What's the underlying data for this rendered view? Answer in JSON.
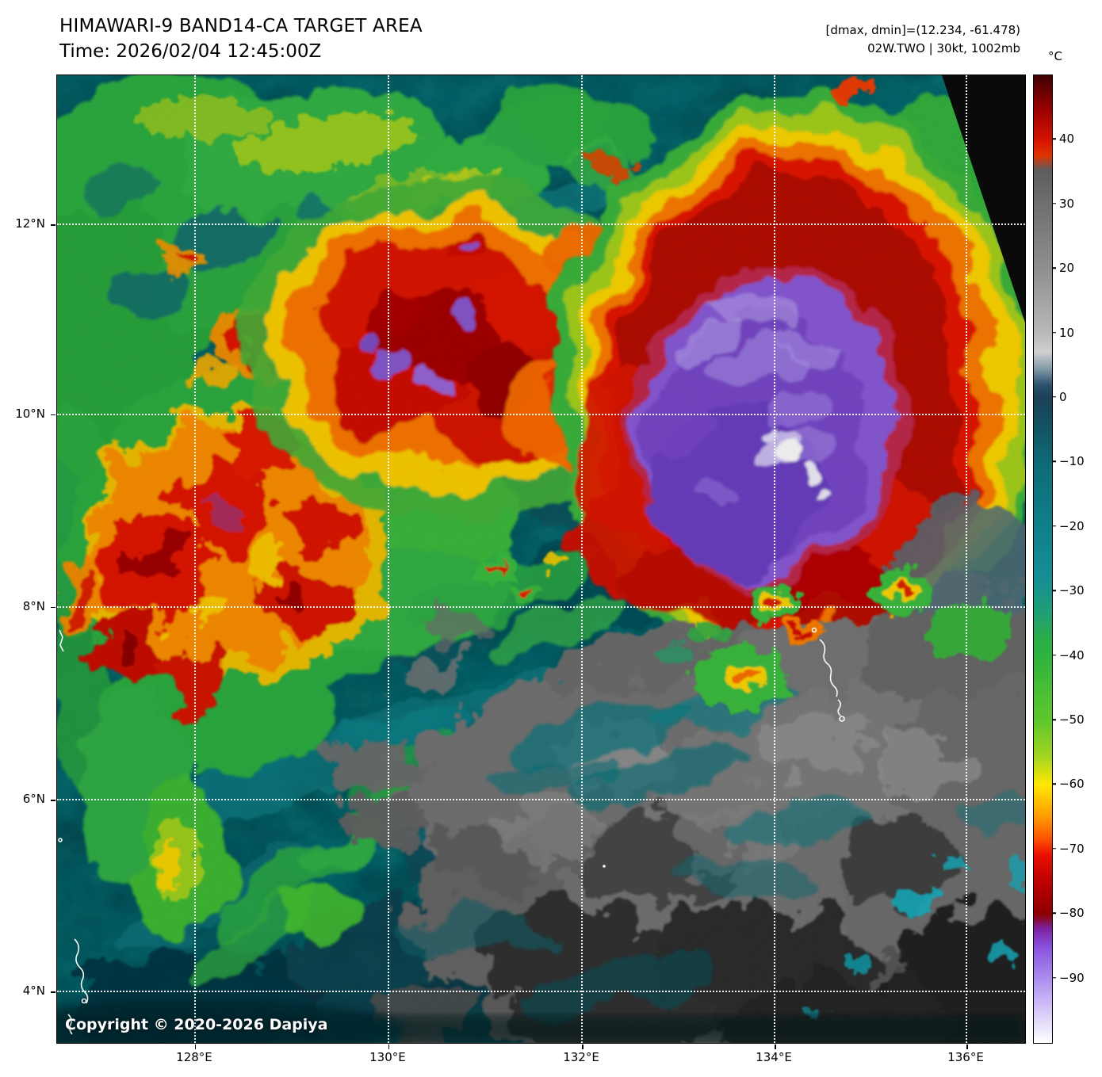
{
  "header": {
    "title": "HIMAWARI-9 BAND14-CA TARGET AREA",
    "time_line": "Time: 2026/02/04 12:45:00Z",
    "range_line": "[dmax, dmin]=(12.234, -61.478)",
    "storm_line": "02W.TWO | 30kt, 1002mb"
  },
  "plot": {
    "copyright": "Copyright © 2020-2026 Dapiya",
    "lat_ticks": [
      {
        "label": "12°N",
        "pct": 15.4
      },
      {
        "label": "10°N",
        "pct": 35.05
      },
      {
        "label": "8°N",
        "pct": 54.95
      },
      {
        "label": "6°N",
        "pct": 74.86
      },
      {
        "label": "4°N",
        "pct": 94.68
      }
    ],
    "lon_ticks": [
      {
        "label": "128°E",
        "pct": 14.25
      },
      {
        "label": "130°E",
        "pct": 34.23
      },
      {
        "label": "132°E",
        "pct": 54.22
      },
      {
        "label": "134°E",
        "pct": 74.12
      },
      {
        "label": "136°E",
        "pct": 93.94
      }
    ]
  },
  "colorbar": {
    "unit": "°C",
    "ticks": [
      {
        "label": "40",
        "pct": 6.67
      },
      {
        "label": "30",
        "pct": 13.33
      },
      {
        "label": "20",
        "pct": 20.0
      },
      {
        "label": "10",
        "pct": 26.67
      },
      {
        "label": "0",
        "pct": 33.33
      },
      {
        "label": "−10",
        "pct": 40.0
      },
      {
        "label": "−20",
        "pct": 46.67
      },
      {
        "label": "−30",
        "pct": 53.33
      },
      {
        "label": "−40",
        "pct": 60.0
      },
      {
        "label": "−50",
        "pct": 66.67
      },
      {
        "label": "−60",
        "pct": 73.33
      },
      {
        "label": "−70",
        "pct": 80.0
      },
      {
        "label": "−80",
        "pct": 86.67
      },
      {
        "label": "−90",
        "pct": 93.33
      }
    ],
    "stops": [
      {
        "pct": 0,
        "color": "#3f0000"
      },
      {
        "pct": 3.5,
        "color": "#9a0000"
      },
      {
        "pct": 6.7,
        "color": "#d61300"
      },
      {
        "pct": 8.3,
        "color": "#e03400"
      },
      {
        "pct": 9.8,
        "color": "#5d5d5d"
      },
      {
        "pct": 13.3,
        "color": "#6f6f6f"
      },
      {
        "pct": 20,
        "color": "#8f8f8f"
      },
      {
        "pct": 26.7,
        "color": "#b9b9b9"
      },
      {
        "pct": 28.6,
        "color": "#cfcfcf"
      },
      {
        "pct": 30.4,
        "color": "#8097a6"
      },
      {
        "pct": 32,
        "color": "#2c526e"
      },
      {
        "pct": 33.3,
        "color": "#1c4057"
      },
      {
        "pct": 36.5,
        "color": "#125463"
      },
      {
        "pct": 40,
        "color": "#0e6b76"
      },
      {
        "pct": 46.7,
        "color": "#0f8089"
      },
      {
        "pct": 52,
        "color": "#158e95"
      },
      {
        "pct": 55.5,
        "color": "#1f9f77"
      },
      {
        "pct": 58,
        "color": "#2aab4c"
      },
      {
        "pct": 60,
        "color": "#2eb33c"
      },
      {
        "pct": 66.7,
        "color": "#5fc72e"
      },
      {
        "pct": 70.5,
        "color": "#a5d521"
      },
      {
        "pct": 73.3,
        "color": "#ffe800"
      },
      {
        "pct": 76.7,
        "color": "#ff9800"
      },
      {
        "pct": 79,
        "color": "#fe4f00"
      },
      {
        "pct": 80.5,
        "color": "#ea1000"
      },
      {
        "pct": 83.5,
        "color": "#bb0000"
      },
      {
        "pct": 86.7,
        "color": "#8c0000"
      },
      {
        "pct": 88.2,
        "color": "#7d22a0"
      },
      {
        "pct": 90,
        "color": "#8a50dd"
      },
      {
        "pct": 93.3,
        "color": "#aa8cee"
      },
      {
        "pct": 96,
        "color": "#cdbcf6"
      },
      {
        "pct": 98.5,
        "color": "#ece6fc"
      },
      {
        "pct": 100,
        "color": "#ffffff"
      }
    ]
  }
}
